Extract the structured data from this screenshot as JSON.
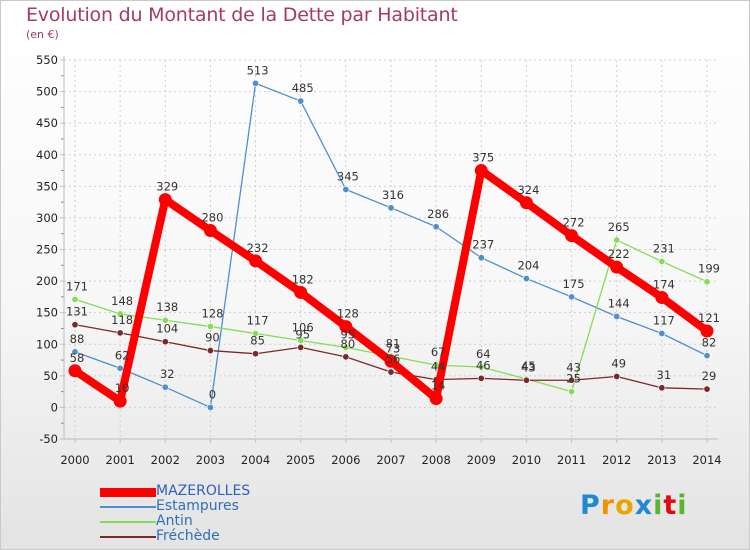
{
  "header": {
    "title": "Evolution du Montant de la Dette par Habitant",
    "subtitle": "(en €)"
  },
  "logo": {
    "letters": [
      "P",
      "r",
      "o",
      "x",
      "i",
      "t",
      "i"
    ],
    "colors": [
      "#1f8ad0",
      "#f39200",
      "#e8a400",
      "#1f8ad0",
      "#5ab430",
      "#e30613",
      "#5ab430"
    ]
  },
  "chart_data": {
    "type": "line",
    "title": "Evolution du Montant de la Dette par Habitant",
    "subtitle": "(en €)",
    "xlabel": "",
    "ylabel": "",
    "ylim": [
      -50,
      550
    ],
    "yticks": [
      -50,
      0,
      50,
      100,
      150,
      200,
      250,
      300,
      350,
      400,
      450,
      500,
      550
    ],
    "grid": true,
    "legend": "bottom-left",
    "x": [
      2000,
      2001,
      2002,
      2003,
      2004,
      2005,
      2006,
      2007,
      2008,
      2009,
      2010,
      2011,
      2012,
      2013,
      2014
    ],
    "series": [
      {
        "name": "MAZEROLLES",
        "color": "#ff0000",
        "emphasis": true,
        "values": [
          58,
          10,
          329,
          280,
          232,
          182,
          128,
          73,
          14,
          375,
          324,
          272,
          222,
          174,
          121
        ]
      },
      {
        "name": "Estampures",
        "color": "#4f8fcf",
        "values": [
          88,
          62,
          32,
          0,
          513,
          485,
          345,
          316,
          286,
          237,
          204,
          175,
          144,
          117,
          82
        ]
      },
      {
        "name": "Antin",
        "color": "#86dc56",
        "values": [
          171,
          148,
          138,
          128,
          117,
          106,
          95,
          81,
          67,
          64,
          45,
          25,
          265,
          231,
          199
        ]
      },
      {
        "name": "Fréchède",
        "color": "#7a2a2a",
        "values": [
          131,
          118,
          104,
          90,
          85,
          95,
          80,
          56,
          44,
          46,
          43,
          43,
          49,
          31,
          29
        ]
      }
    ]
  }
}
